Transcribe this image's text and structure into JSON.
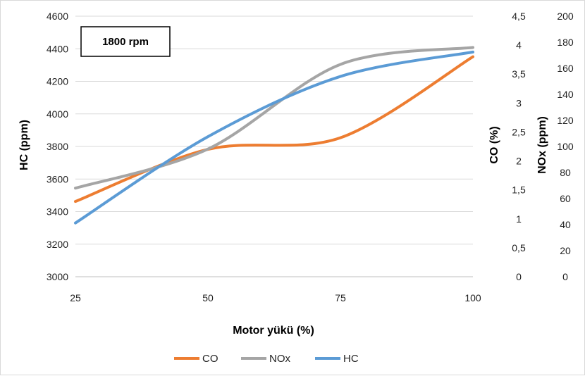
{
  "chart_data": {
    "type": "line",
    "annotation": "1800 rpm",
    "xlabel": "Motor yükü (%)",
    "x": [
      25,
      50,
      75,
      100
    ],
    "xlim": [
      25,
      100
    ],
    "x_ticks": [
      "25",
      "50",
      "75",
      "100"
    ],
    "axes": {
      "hc": {
        "label": "HC (ppm)",
        "ylim": [
          3000,
          4600
        ],
        "ticks": [
          "3000",
          "3200",
          "3400",
          "3600",
          "3800",
          "4000",
          "4200",
          "4400",
          "4600"
        ]
      },
      "co": {
        "label": "CO (%)",
        "ylim": [
          0,
          4.5
        ],
        "ticks": [
          "0",
          "0,5",
          "1",
          "1,5",
          "2",
          "2,5",
          "3",
          "3,5",
          "4",
          "4,5"
        ]
      },
      "nox": {
        "label": "NOx (ppm)",
        "ylim": [
          0,
          200
        ],
        "ticks": [
          "0",
          "20",
          "40",
          "60",
          "80",
          "100",
          "120",
          "140",
          "160",
          "180",
          "200"
        ]
      }
    },
    "series": [
      {
        "name": "CO",
        "axis": "co",
        "color": "#ED7D31",
        "values": [
          1.3,
          2.2,
          2.4,
          3.8
        ]
      },
      {
        "name": "NOx",
        "axis": "nox",
        "color": "#A5A5A5",
        "values": [
          68,
          98,
          163,
          176
        ]
      },
      {
        "name": "HC",
        "axis": "hc",
        "color": "#5B9BD5",
        "values": [
          3330,
          3860,
          4230,
          4380
        ]
      }
    ],
    "legend_position": "bottom",
    "grid": "horizontal"
  }
}
